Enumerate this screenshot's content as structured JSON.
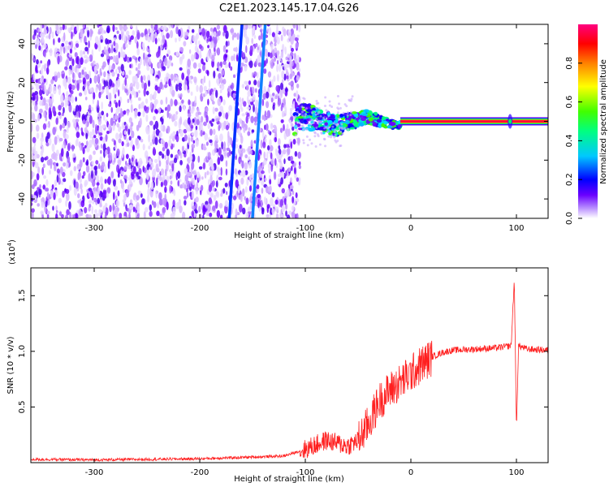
{
  "title": "C2E1.2023.145.17.04.G26",
  "chart_data": [
    {
      "type": "heatmap",
      "xlabel": "Height of straight line (km)",
      "ylabel": "Frequency (Hz)",
      "xlim": [
        -360,
        130
      ],
      "ylim": [
        -50,
        50
      ],
      "xticks": [
        -300,
        -200,
        -100,
        0,
        100
      ],
      "yticks": [
        -40,
        -20,
        0,
        20,
        40
      ],
      "colorbar": {
        "label": "Normalized spectral amplitude",
        "range": [
          0.0,
          1.0
        ],
        "ticks": [
          "0.0",
          "0.2",
          "0.4",
          "0.6",
          "0.8"
        ],
        "colors": [
          "#ffffff",
          "#6a00ff",
          "#0000ff",
          "#00c8ff",
          "#00ff00",
          "#ffff00",
          "#ff8000",
          "#ff0000",
          "#ff0080"
        ]
      },
      "features": {
        "noise_region_km": [
          -360,
          -110
        ],
        "transition_region_km": [
          -110,
          -10
        ],
        "carrier_line_km": [
          -10,
          130
        ],
        "carrier_frequency_hz": 0,
        "interference_lines": [
          {
            "x_at_bottom_km": -172,
            "x_at_top_km": -160
          },
          {
            "x_at_bottom_km": -150,
            "x_at_top_km": -138
          }
        ]
      }
    },
    {
      "type": "line",
      "xlabel": "Height of straight line (km)",
      "ylabel": "SNR (10 * v/v)",
      "yunit_exponent": "(x10",
      "yunit_power": "4",
      "yunit_close": ")",
      "xlim": [
        -360,
        130
      ],
      "ylim": [
        0,
        17500
      ],
      "xticks": [
        -300,
        -200,
        -100,
        0,
        100
      ],
      "yticks": [
        "0.5",
        "1.0",
        "1.5"
      ],
      "ytick_values": [
        5000,
        10000,
        15000
      ],
      "series_color": "#ff2020",
      "x": [
        -360,
        -300,
        -250,
        -200,
        -150,
        -120,
        -100,
        -80,
        -60,
        -50,
        -40,
        -30,
        -20,
        -10,
        0,
        10,
        20,
        30,
        40,
        60,
        80,
        95,
        98,
        100,
        102,
        110,
        130
      ],
      "y": [
        300,
        250,
        300,
        350,
        500,
        600,
        1200,
        2000,
        1500,
        2000,
        3500,
        5500,
        6500,
        7200,
        8000,
        8800,
        9500,
        9900,
        10100,
        10200,
        10300,
        10500,
        16500,
        3000,
        10500,
        10200,
        10100
      ]
    }
  ]
}
